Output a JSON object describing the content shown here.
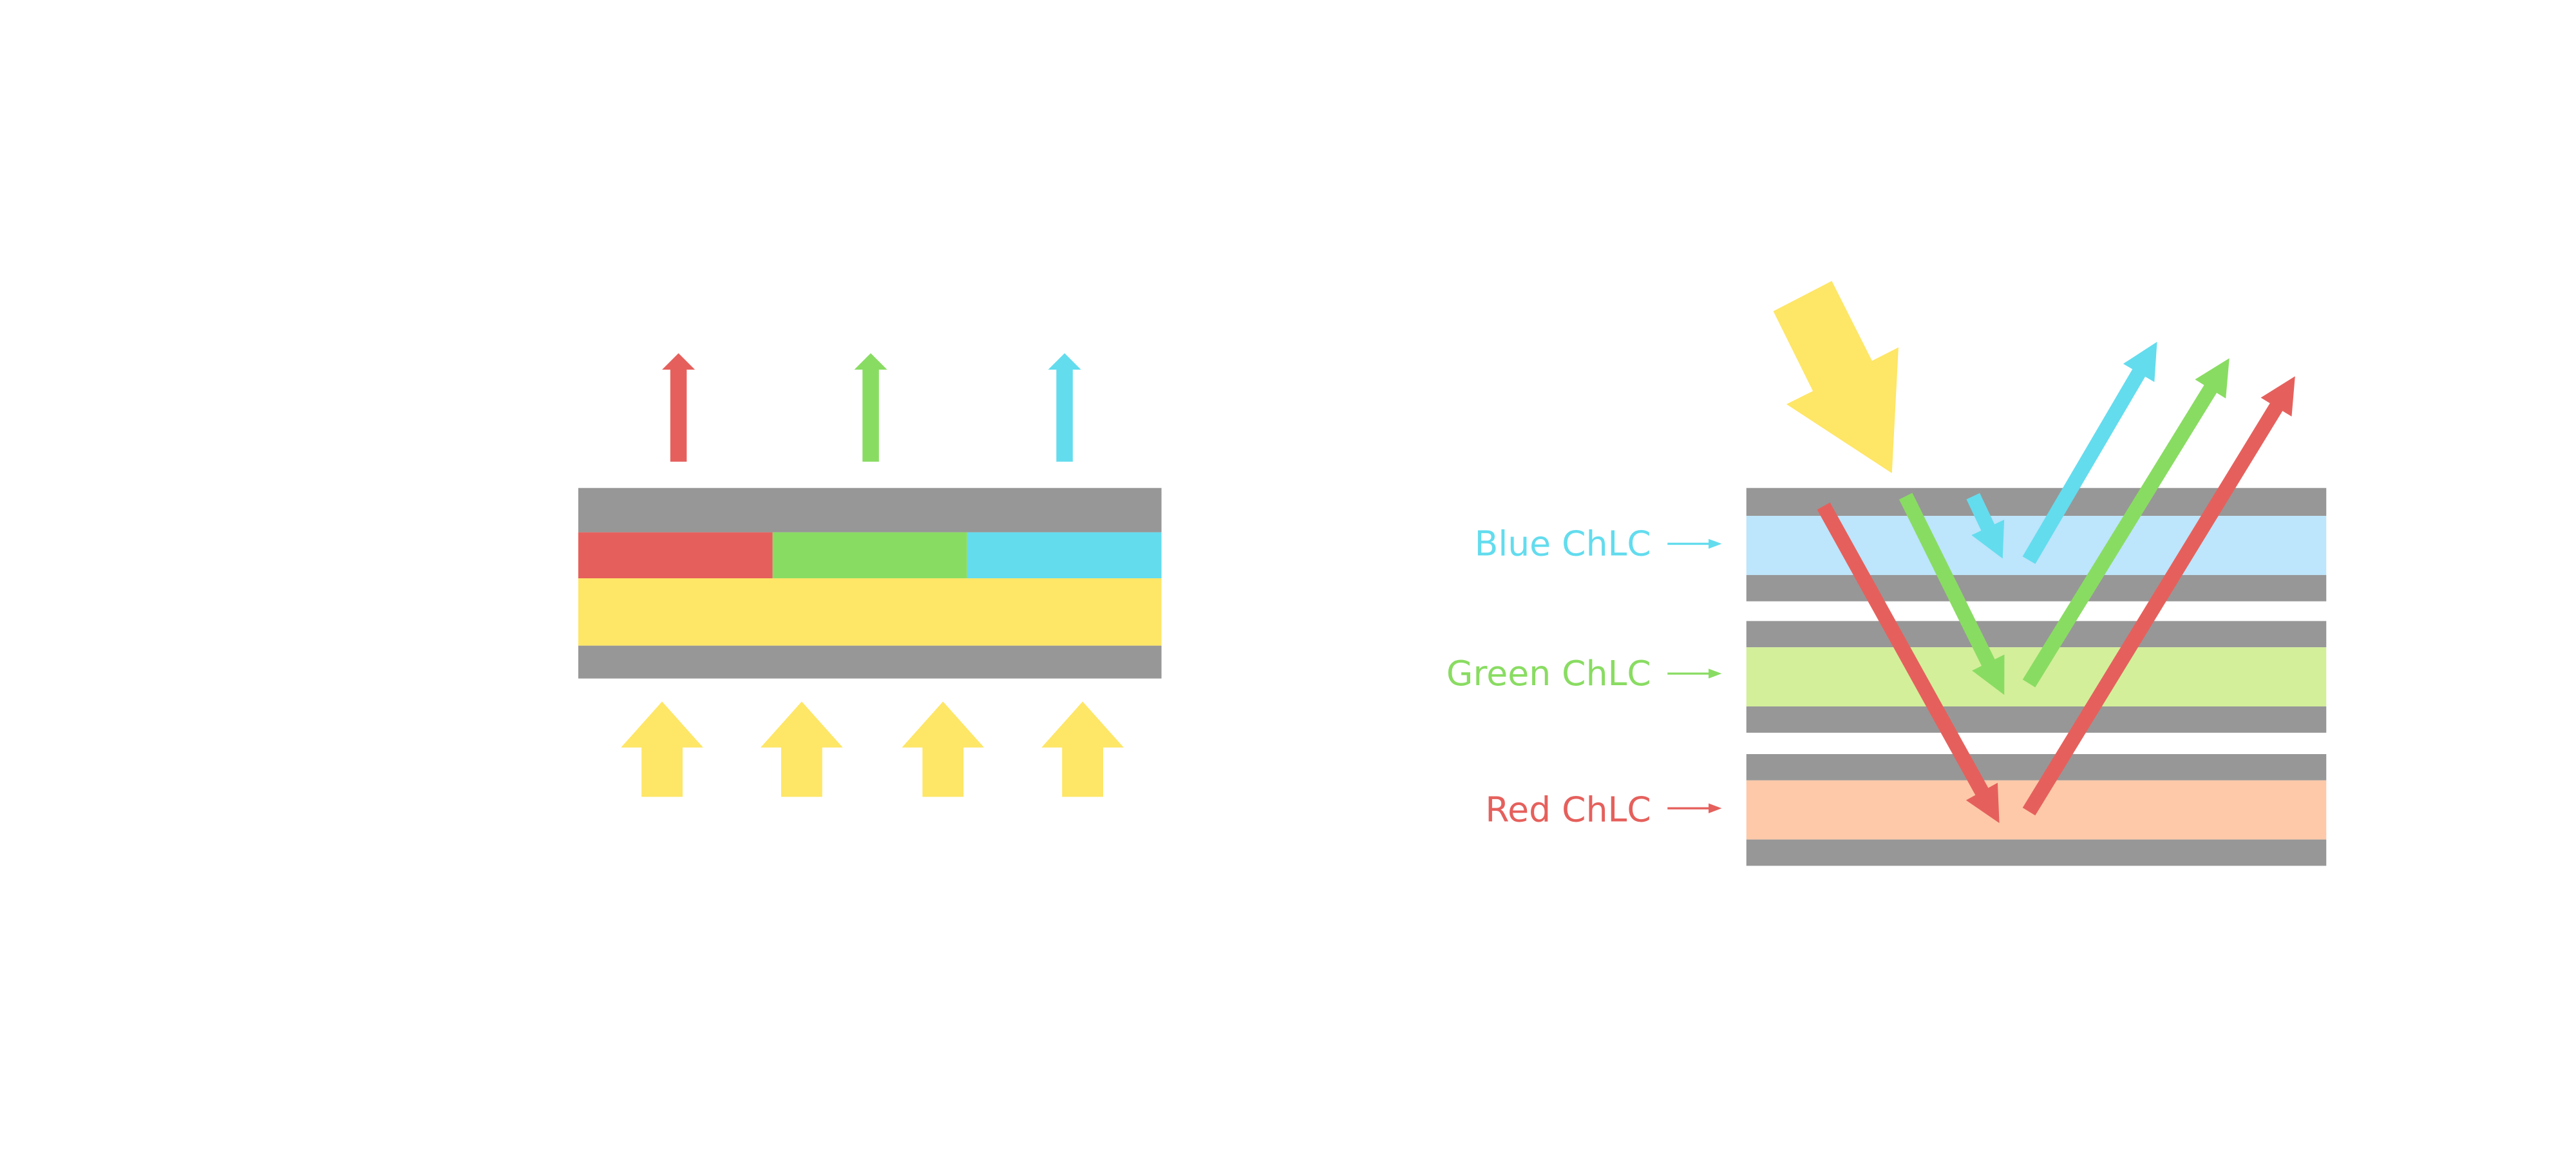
{
  "colors": {
    "red": "#E5605C",
    "green": "#89DC62",
    "cyan": "#63DCEE",
    "yellow": "#FEE667",
    "gray": "#979797",
    "blue_layer": "#BDE5FB",
    "green_layer": "#D3EF9A",
    "red_layer": "#FDC9A9"
  },
  "right_diagram": {
    "labels": {
      "blue": "Blue ChLC",
      "green": "Green ChLC",
      "red": "Red ChLC"
    }
  }
}
